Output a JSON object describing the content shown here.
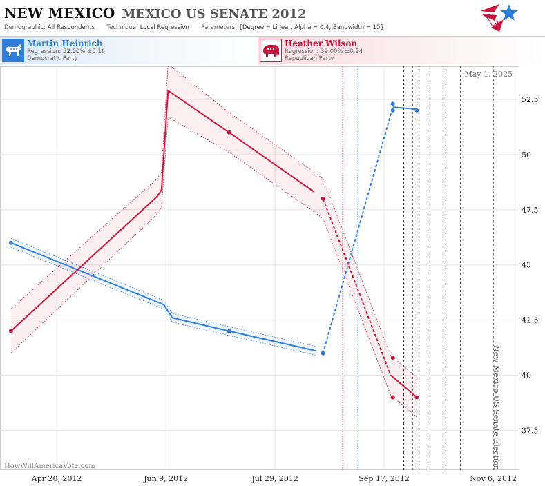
{
  "header": {
    "state": "NEW MEXICO",
    "race": "MEXICO US SENATE 2012",
    "demographic_label": "Demographic:",
    "demographic_value": "All Respondents",
    "technique_label": "Technique:",
    "technique_value": "Local Regression",
    "parameters_label": "Parameters:",
    "parameters_value": "{Degree = Linear, Alpha = 0.4, Bandwidth = 15}"
  },
  "candidates": [
    {
      "name": "Martin Heinrich",
      "regression": "Regression: 52.00% ±0.16",
      "party": "Democratic Party",
      "color": "#2f7fd8",
      "icon": "donkey-icon"
    },
    {
      "name": "Heather Wilson",
      "regression": "Regression: 39.00% ±0.94",
      "party": "Republican Party",
      "color": "#c8173f",
      "icon": "elephant-icon"
    }
  ],
  "chart_data": {
    "type": "line",
    "date_stamp": "May 1, 2025",
    "watermark": "HowWillAmericaVote.com",
    "election_label": "New Mexico US Senate Election",
    "x_ticks": [
      "2012-04-20",
      "2012-06-09",
      "2012-07-29",
      "2012-09-17",
      "2012-11-06"
    ],
    "x_tick_labels": [
      "Apr 20, 2012",
      "Jun 9, 2012",
      "Jul 29, 2012",
      "Sep 17, 2012",
      "Nov 6, 2012"
    ],
    "xlim": [
      "2012-03-25",
      "2012-11-18"
    ],
    "y_ticks": [
      37.5,
      40,
      42.5,
      45,
      47.5,
      50,
      52.5
    ],
    "y_tick_labels": [
      "37.5",
      "40",
      "42.5",
      "45",
      "47.5",
      "50",
      "52.5"
    ],
    "ylim": [
      35.7,
      54.0
    ],
    "grid": true,
    "reference_lines": [
      {
        "date": "2012-08-29",
        "color": "#c8173f",
        "style": "dotted"
      },
      {
        "date": "2012-09-05",
        "color": "#2f7fd8",
        "style": "dotted"
      },
      {
        "date": "2012-09-26",
        "color": "#333333",
        "style": "dashed"
      },
      {
        "date": "2012-09-30",
        "color": "#333333",
        "style": "dashed"
      },
      {
        "date": "2012-10-03",
        "color": "#333333",
        "style": "dashed"
      },
      {
        "date": "2012-10-08",
        "color": "#333333",
        "style": "dashed"
      },
      {
        "date": "2012-10-14",
        "color": "#333333",
        "style": "dashed"
      },
      {
        "date": "2012-10-22",
        "color": "#333333",
        "style": "dashed"
      },
      {
        "date": "2012-11-06",
        "color": "#333333",
        "style": "dashed"
      }
    ],
    "series": [
      {
        "name": "Martin Heinrich",
        "color": "#2f7fd8",
        "points": [
          {
            "x": "2012-03-30",
            "y": 46.0
          },
          {
            "x": "2012-07-08",
            "y": 42.0
          },
          {
            "x": "2012-08-20",
            "y": 41.0
          },
          {
            "x": "2012-09-21",
            "y": 52.3
          },
          {
            "x": "2012-09-21",
            "y": 52.0
          },
          {
            "x": "2012-10-02",
            "y": 52.0
          }
        ],
        "fit_solid": [
          {
            "x": "2012-03-30",
            "y": 46.0
          },
          {
            "x": "2012-06-08",
            "y": 43.2
          },
          {
            "x": "2012-06-12",
            "y": 42.6
          },
          {
            "x": "2012-07-08",
            "y": 42.0
          },
          {
            "x": "2012-08-17",
            "y": 41.1
          }
        ],
        "fit_dashed": [
          {
            "x": "2012-08-20",
            "y": 41.0
          },
          {
            "x": "2012-09-21",
            "y": 52.15
          }
        ],
        "fit_solid_end": [
          {
            "x": "2012-09-21",
            "y": 52.15
          },
          {
            "x": "2012-10-02",
            "y": 52.05
          }
        ],
        "band_upper": [
          {
            "x": "2012-03-30",
            "y": 46.2
          },
          {
            "x": "2012-06-08",
            "y": 43.4
          },
          {
            "x": "2012-06-12",
            "y": 42.8
          },
          {
            "x": "2012-07-08",
            "y": 42.2
          },
          {
            "x": "2012-08-17",
            "y": 41.3
          }
        ],
        "band_lower": [
          {
            "x": "2012-03-30",
            "y": 45.8
          },
          {
            "x": "2012-06-08",
            "y": 43.0
          },
          {
            "x": "2012-06-12",
            "y": 42.4
          },
          {
            "x": "2012-07-08",
            "y": 41.8
          },
          {
            "x": "2012-08-17",
            "y": 40.9
          }
        ]
      },
      {
        "name": "Heather Wilson",
        "color": "#c8173f",
        "points": [
          {
            "x": "2012-03-30",
            "y": 42.0
          },
          {
            "x": "2012-07-08",
            "y": 51.0
          },
          {
            "x": "2012-08-20",
            "y": 48.0
          },
          {
            "x": "2012-09-21",
            "y": 39.0
          },
          {
            "x": "2012-09-21",
            "y": 40.8
          },
          {
            "x": "2012-10-02",
            "y": 39.0
          }
        ],
        "fit_solid": [
          {
            "x": "2012-03-30",
            "y": 42.0
          },
          {
            "x": "2012-06-05",
            "y": 48.1
          },
          {
            "x": "2012-06-07",
            "y": 48.4
          },
          {
            "x": "2012-06-10",
            "y": 52.9
          },
          {
            "x": "2012-07-08",
            "y": 51.0
          },
          {
            "x": "2012-08-16",
            "y": 48.3
          }
        ],
        "fit_dashed": [
          {
            "x": "2012-08-20",
            "y": 48.0
          },
          {
            "x": "2012-09-20",
            "y": 40.0
          }
        ],
        "fit_solid_end": [
          {
            "x": "2012-09-20",
            "y": 40.0
          },
          {
            "x": "2012-10-02",
            "y": 39.0
          }
        ],
        "band_upper": [
          {
            "x": "2012-03-30",
            "y": 43.0
          },
          {
            "x": "2012-06-05",
            "y": 48.9
          },
          {
            "x": "2012-06-07",
            "y": 49.2
          },
          {
            "x": "2012-06-10",
            "y": 54.1
          },
          {
            "x": "2012-07-08",
            "y": 51.9
          },
          {
            "x": "2012-08-16",
            "y": 49.2
          },
          {
            "x": "2012-08-20",
            "y": 48.9
          },
          {
            "x": "2012-09-20",
            "y": 40.9
          },
          {
            "x": "2012-10-02",
            "y": 39.9
          }
        ],
        "band_lower": [
          {
            "x": "2012-03-30",
            "y": 41.0
          },
          {
            "x": "2012-06-05",
            "y": 47.3
          },
          {
            "x": "2012-06-07",
            "y": 47.6
          },
          {
            "x": "2012-06-10",
            "y": 51.7
          },
          {
            "x": "2012-07-08",
            "y": 50.1
          },
          {
            "x": "2012-08-16",
            "y": 47.4
          },
          {
            "x": "2012-08-20",
            "y": 47.1
          },
          {
            "x": "2012-09-20",
            "y": 39.1
          },
          {
            "x": "2012-10-02",
            "y": 38.1
          }
        ]
      }
    ]
  }
}
